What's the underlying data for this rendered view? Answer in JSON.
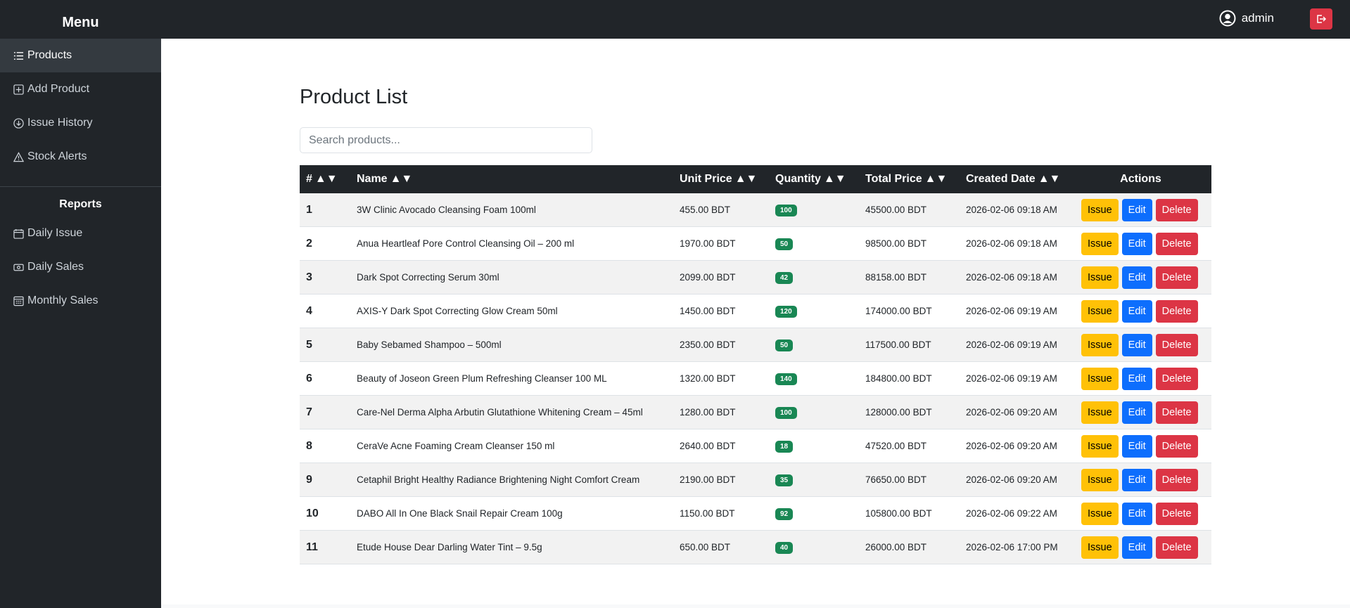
{
  "header": {
    "menu_title": "Menu",
    "user": "admin"
  },
  "sidebar": {
    "items": [
      "Products",
      "Add Product",
      "Issue History",
      "Stock Alerts"
    ],
    "reports_title": "Reports",
    "reports": [
      "Daily Issue",
      "Daily Sales",
      "Monthly Sales"
    ]
  },
  "content": {
    "title": "Product List",
    "search_placeholder": "Search products..."
  },
  "table": {
    "columns": [
      "#",
      "Name",
      "Unit Price",
      "Quantity",
      "Total Price",
      "Created Date",
      "Actions"
    ],
    "sort_indicator": "▲▼",
    "actions": [
      "Issue",
      "Edit",
      "Delete"
    ],
    "rows": [
      [
        "1",
        "3W Clinic Avocado Cleansing Foam 100ml",
        "455.00 BDT",
        "100",
        "45500.00 BDT",
        "2026-02-06 09:18 AM"
      ],
      [
        "2",
        "Anua Heartleaf Pore Control Cleansing Oil – 200 ml",
        "1970.00 BDT",
        "50",
        "98500.00 BDT",
        "2026-02-06 09:18 AM"
      ],
      [
        "3",
        "Dark Spot Correcting Serum 30ml",
        "2099.00 BDT",
        "42",
        "88158.00 BDT",
        "2026-02-06 09:18 AM"
      ],
      [
        "4",
        "AXIS-Y Dark Spot Correcting Glow Cream 50ml",
        "1450.00 BDT",
        "120",
        "174000.00 BDT",
        "2026-02-06 09:19 AM"
      ],
      [
        "5",
        "Baby Sebamed Shampoo – 500ml",
        "2350.00 BDT",
        "50",
        "117500.00 BDT",
        "2026-02-06 09:19 AM"
      ],
      [
        "6",
        "Beauty of Joseon Green Plum Refreshing Cleanser 100 ML",
        "1320.00 BDT",
        "140",
        "184800.00 BDT",
        "2026-02-06 09:19 AM"
      ],
      [
        "7",
        "Care-Nel Derma Alpha Arbutin Glutathione Whitening Cream – 45ml",
        "1280.00 BDT",
        "100",
        "128000.00 BDT",
        "2026-02-06 09:20 AM"
      ],
      [
        "8",
        "CeraVe Acne Foaming Cream Cleanser 150 ml",
        "2640.00 BDT",
        "18",
        "47520.00 BDT",
        "2026-02-06 09:20 AM"
      ],
      [
        "9",
        "Cetaphil Bright Healthy Radiance Brightening Night Comfort Cream",
        "2190.00 BDT",
        "35",
        "76650.00 BDT",
        "2026-02-06 09:20 AM"
      ],
      [
        "10",
        "DABO All In One Black Snail Repair Cream 100g",
        "1150.00 BDT",
        "92",
        "105800.00 BDT",
        "2026-02-06 09:22 AM"
      ],
      [
        "11",
        "Etude House Dear Darling Water Tint – 9.5g",
        "650.00 BDT",
        "40",
        "26000.00 BDT",
        "2026-02-06 17:00 PM"
      ]
    ]
  }
}
